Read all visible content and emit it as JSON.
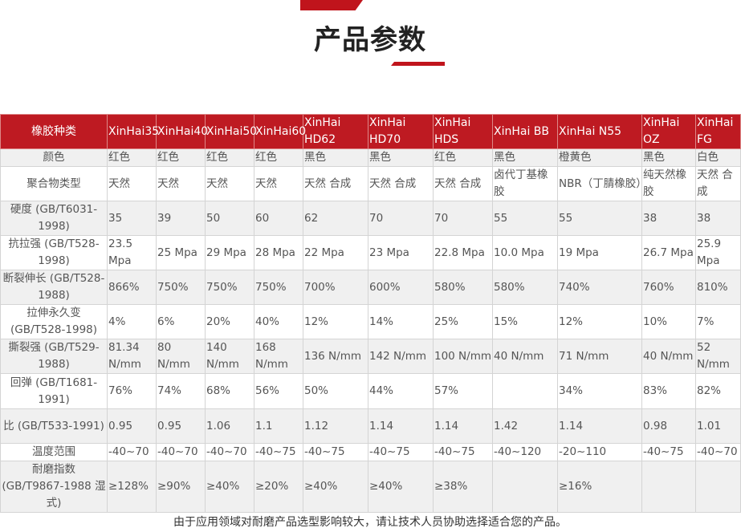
{
  "title": "产品参数",
  "accent_color": "#be1a22",
  "table": {
    "header": [
      "橡胶种类",
      "XinHai35",
      "XinHai40",
      "XinHai50",
      "XinHai60",
      "XinHai HD62",
      "XinHai HD70",
      "XinHai HDS",
      "XinHai BB",
      "XinHai N55",
      "XinHai OZ",
      "XinHai FG"
    ],
    "rows": [
      [
        "颜色",
        "红色",
        "红色",
        "红色",
        "红色",
        "黑色",
        "黑色",
        "红色",
        "黑色",
        "橙黄色",
        "黑色",
        "白色"
      ],
      [
        "聚合物类型",
        "天然",
        "天然",
        "天然",
        "天然",
        "天然 合成",
        "天然 合成",
        "天然 合成",
        "卤代丁基橡胶",
        "NBR（丁腈橡胶）",
        "纯天然橡胶",
        "天然 合成"
      ],
      [
        "硬度 (GB/T6031-1998)",
        "35",
        "39",
        "50",
        "60",
        "62",
        "70",
        "70",
        "55",
        "55",
        "38",
        "38"
      ],
      [
        "抗拉强 (GB/T528-1998)",
        "23.5 Mpa",
        "25 Mpa",
        "29 Mpa",
        "28 Mpa",
        "22 Mpa",
        "23 Mpa",
        "22.8 Mpa",
        "10.0 Mpa",
        "19 Mpa",
        "26.7 Mpa",
        "25.9 Mpa"
      ],
      [
        "断裂伸长 (GB/T528-1988)",
        "866%",
        "750%",
        "750%",
        "750%",
        "700%",
        "600%",
        "580%",
        "580%",
        "740%",
        "760%",
        "810%"
      ],
      [
        "拉伸永久变 (GB/T528-1998)",
        "4%",
        "6%",
        "20%",
        "40%",
        "12%",
        "14%",
        "25%",
        "15%",
        "12%",
        "10%",
        "7%"
      ],
      [
        "撕裂强 (GB/T529-1988)",
        "81.34 N/mm",
        "80 N/mm",
        "140 N/mm",
        "168 N/mm",
        "136 N/mm",
        "142 N/mm",
        "100 N/mm",
        "40 N/mm",
        "71 N/mm",
        "40 N/mm",
        "52 N/mm"
      ],
      [
        "回弹 (GB/T1681-1991)",
        "76%",
        "74%",
        "68%",
        "56%",
        "50%",
        "44%",
        "57%",
        "",
        "34%",
        "83%",
        "82%"
      ],
      [
        "比 (GB/T533-1991)",
        "0.95",
        "0.95",
        "1.06",
        "1.1",
        "1.12",
        "1.14",
        "1.14",
        "1.42",
        "1.14",
        "0.98",
        "1.01"
      ],
      [
        "温度范围",
        "-40~70",
        "-40~70",
        "-40~70",
        "-40~75",
        "-40~75",
        "-40~75",
        "-40~75",
        "-40~120",
        "-20~110",
        "-40~75",
        "-40~70"
      ],
      [
        "耐磨指数 (GB/T9867-1988 湿式)",
        "≥128%",
        "≥90%",
        "≥40%",
        "≥20%",
        "≥40%",
        "≥40%",
        "≥38%",
        "",
        "≥16%",
        "",
        ""
      ]
    ]
  },
  "footer": "由于应用领域对耐磨产品选型影响较大，请让技术人员协助选择适合您的产品。"
}
